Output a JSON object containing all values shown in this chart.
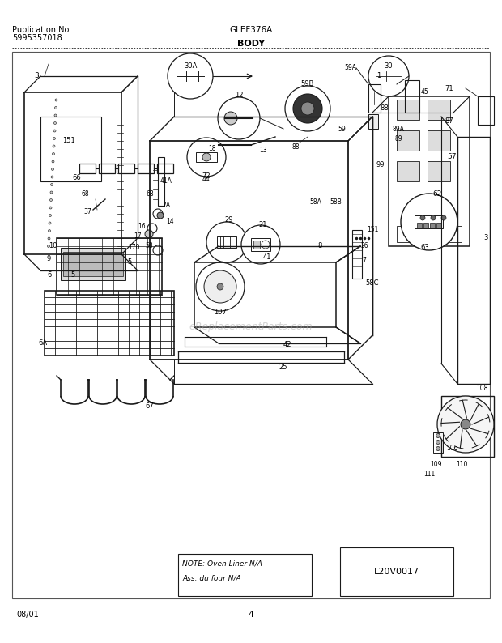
{
  "title": "GLEF376A",
  "subtitle": "BODY",
  "pub_no_label": "Publication No.",
  "pub_no": "5995357018",
  "date": "08/01",
  "page": "4",
  "watermark": "eReplacementParts.com",
  "note_line1": "NOTE: Oven Liner N/A",
  "note_line2": "Ass. du four N/A",
  "logo": "L20V0017",
  "bg_color": "#ffffff",
  "border_color": "#000000",
  "text_color": "#000000",
  "diagram_color": "#1a1a1a",
  "figsize": [
    6.2,
    7.94
  ],
  "dpi": 100
}
